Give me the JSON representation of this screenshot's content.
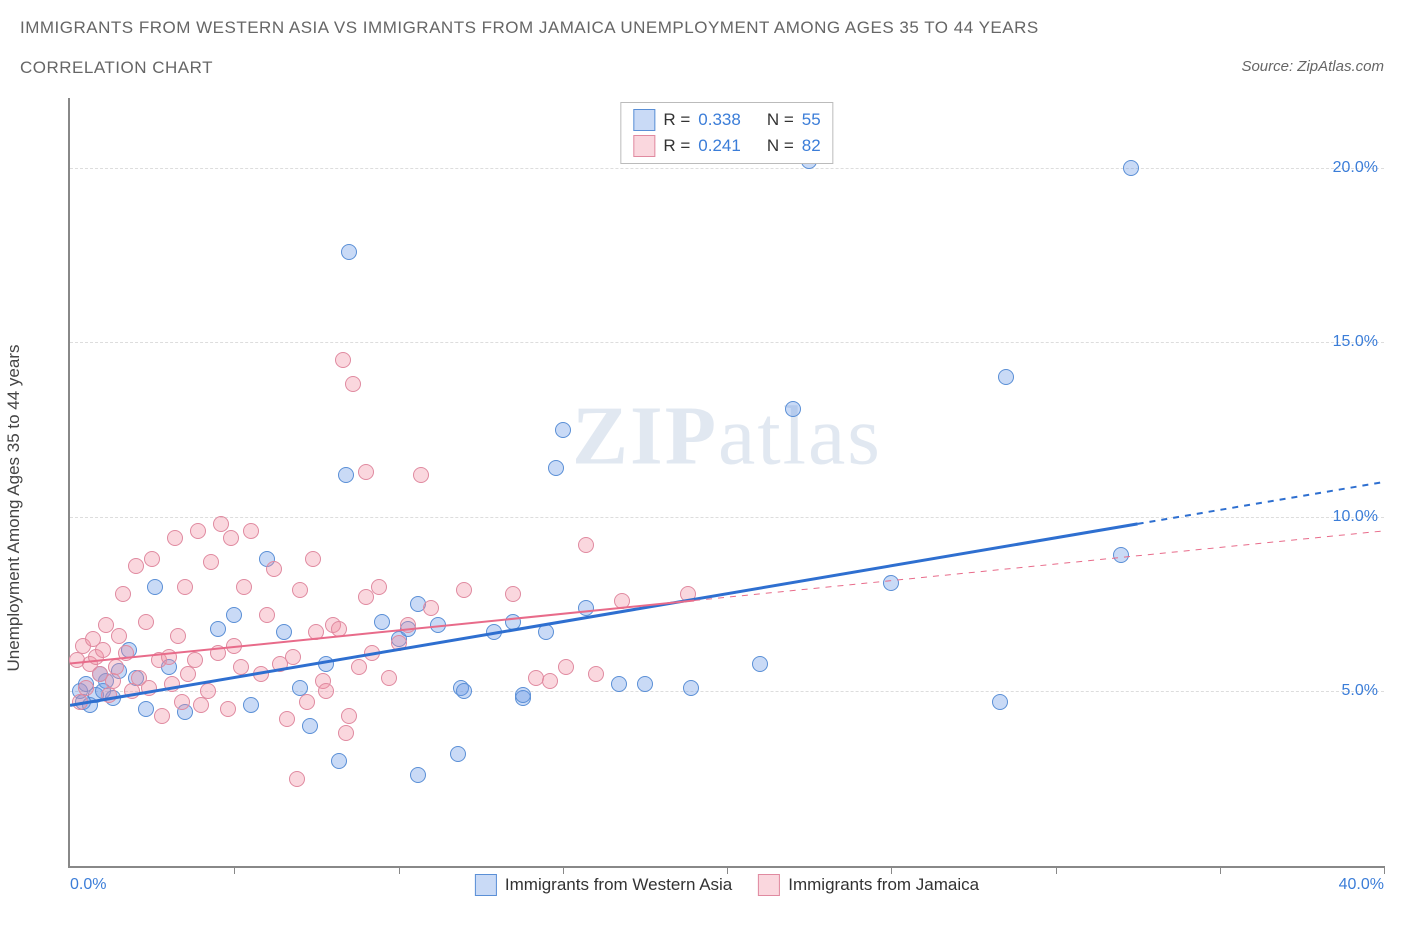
{
  "title_line1": "IMMIGRANTS FROM WESTERN ASIA VS IMMIGRANTS FROM JAMAICA UNEMPLOYMENT AMONG AGES 35 TO 44 YEARS",
  "title_line2": "CORRELATION CHART",
  "source_label": "Source: ZipAtlas.com",
  "watermark_zip": "ZIP",
  "watermark_atlas": "atlas",
  "chart": {
    "type": "scatter",
    "y_axis_label": "Unemployment Among Ages 35 to 44 years",
    "xlim": [
      0,
      40
    ],
    "ylim": [
      0,
      22
    ],
    "x_ticks": [
      {
        "pos": 0,
        "label": "0.0%"
      },
      {
        "pos": 40,
        "label": "40.0%"
      }
    ],
    "x_tick_marks": [
      5,
      10,
      15,
      20,
      25,
      30,
      35,
      40
    ],
    "y_ticks": [
      {
        "pos": 5,
        "label": "5.0%"
      },
      {
        "pos": 10,
        "label": "10.0%"
      },
      {
        "pos": 15,
        "label": "15.0%"
      },
      {
        "pos": 20,
        "label": "20.0%"
      }
    ],
    "grid_color": "#dddddd",
    "background_color": "#ffffff",
    "series": [
      {
        "name": "Immigrants from Western Asia",
        "legend_label": "Immigrants from Western Asia",
        "fill": "rgba(100,150,230,0.35)",
        "stroke": "#5a8fd6",
        "R": "0.338",
        "N": "55",
        "trend": {
          "x1": 0,
          "y1": 4.6,
          "x2": 40,
          "y2": 11.0,
          "solid_until_x": 32.5,
          "color": "#2e6fd0",
          "width": 3
        },
        "points": [
          [
            0.3,
            5.0
          ],
          [
            0.4,
            4.7
          ],
          [
            0.5,
            5.2
          ],
          [
            0.6,
            4.6
          ],
          [
            0.8,
            4.9
          ],
          [
            0.9,
            5.5
          ],
          [
            1.0,
            5.0
          ],
          [
            1.1,
            5.3
          ],
          [
            1.3,
            4.8
          ],
          [
            1.5,
            5.6
          ],
          [
            1.8,
            6.2
          ],
          [
            2.0,
            5.4
          ],
          [
            2.3,
            4.5
          ],
          [
            2.6,
            8.0
          ],
          [
            3.0,
            5.7
          ],
          [
            3.5,
            4.4
          ],
          [
            4.5,
            6.8
          ],
          [
            5.0,
            7.2
          ],
          [
            5.5,
            4.6
          ],
          [
            6.0,
            8.8
          ],
          [
            6.5,
            6.7
          ],
          [
            7.0,
            5.1
          ],
          [
            7.3,
            4.0
          ],
          [
            7.8,
            5.8
          ],
          [
            8.2,
            3.0
          ],
          [
            8.4,
            11.2
          ],
          [
            8.5,
            17.6
          ],
          [
            9.5,
            7.0
          ],
          [
            10.0,
            6.5
          ],
          [
            10.3,
            6.8
          ],
          [
            10.6,
            7.5
          ],
          [
            10.6,
            2.6
          ],
          [
            11.2,
            6.9
          ],
          [
            11.8,
            3.2
          ],
          [
            11.9,
            5.1
          ],
          [
            12.0,
            5.0
          ],
          [
            12.9,
            6.7
          ],
          [
            13.5,
            7.0
          ],
          [
            13.8,
            4.8
          ],
          [
            13.8,
            4.9
          ],
          [
            14.5,
            6.7
          ],
          [
            14.8,
            11.4
          ],
          [
            15.0,
            12.5
          ],
          [
            15.7,
            7.4
          ],
          [
            16.7,
            5.2
          ],
          [
            17.5,
            5.2
          ],
          [
            18.9,
            5.1
          ],
          [
            21.0,
            5.8
          ],
          [
            22.0,
            13.1
          ],
          [
            22.5,
            20.2
          ],
          [
            25.0,
            8.1
          ],
          [
            28.3,
            4.7
          ],
          [
            28.5,
            14.0
          ],
          [
            32.0,
            8.9
          ],
          [
            32.3,
            20.0
          ]
        ]
      },
      {
        "name": "Immigrants from Jamaica",
        "legend_label": "Immigrants from Jamaica",
        "fill": "rgba(240,140,160,0.35)",
        "stroke": "#e08aa0",
        "R": "0.241",
        "N": "82",
        "trend": {
          "x1": 0,
          "y1": 5.8,
          "x2": 40,
          "y2": 9.6,
          "solid_until_x": 19,
          "color": "#e86b8a",
          "width": 2
        },
        "points": [
          [
            0.2,
            5.9
          ],
          [
            0.3,
            4.7
          ],
          [
            0.4,
            6.3
          ],
          [
            0.5,
            5.1
          ],
          [
            0.6,
            5.8
          ],
          [
            0.7,
            6.5
          ],
          [
            0.8,
            6.0
          ],
          [
            0.9,
            5.5
          ],
          [
            1.0,
            6.2
          ],
          [
            1.1,
            6.9
          ],
          [
            1.2,
            4.9
          ],
          [
            1.3,
            5.3
          ],
          [
            1.4,
            5.7
          ],
          [
            1.5,
            6.6
          ],
          [
            1.6,
            7.8
          ],
          [
            1.7,
            6.1
          ],
          [
            1.9,
            5.0
          ],
          [
            2.0,
            8.6
          ],
          [
            2.1,
            5.4
          ],
          [
            2.3,
            7.0
          ],
          [
            2.4,
            5.1
          ],
          [
            2.5,
            8.8
          ],
          [
            2.7,
            5.9
          ],
          [
            2.8,
            4.3
          ],
          [
            3.0,
            6.0
          ],
          [
            3.1,
            5.2
          ],
          [
            3.2,
            9.4
          ],
          [
            3.3,
            6.6
          ],
          [
            3.4,
            4.7
          ],
          [
            3.5,
            8.0
          ],
          [
            3.6,
            5.5
          ],
          [
            3.8,
            5.9
          ],
          [
            3.9,
            9.6
          ],
          [
            4.0,
            4.6
          ],
          [
            4.2,
            5.0
          ],
          [
            4.3,
            8.7
          ],
          [
            4.5,
            6.1
          ],
          [
            4.6,
            9.8
          ],
          [
            4.8,
            4.5
          ],
          [
            4.9,
            9.4
          ],
          [
            5.0,
            6.3
          ],
          [
            5.2,
            5.7
          ],
          [
            5.3,
            8.0
          ],
          [
            5.5,
            9.6
          ],
          [
            5.8,
            5.5
          ],
          [
            6.0,
            7.2
          ],
          [
            6.2,
            8.5
          ],
          [
            6.4,
            5.8
          ],
          [
            6.6,
            4.2
          ],
          [
            6.8,
            6.0
          ],
          [
            6.9,
            2.5
          ],
          [
            7.0,
            7.9
          ],
          [
            7.2,
            4.7
          ],
          [
            7.4,
            8.8
          ],
          [
            7.5,
            6.7
          ],
          [
            7.7,
            5.3
          ],
          [
            7.8,
            5.0
          ],
          [
            8.0,
            6.9
          ],
          [
            8.2,
            6.8
          ],
          [
            8.3,
            14.5
          ],
          [
            8.4,
            3.8
          ],
          [
            8.5,
            4.3
          ],
          [
            8.6,
            13.8
          ],
          [
            8.8,
            5.7
          ],
          [
            9.0,
            7.7
          ],
          [
            9.0,
            11.3
          ],
          [
            9.2,
            6.1
          ],
          [
            9.4,
            8.0
          ],
          [
            9.7,
            5.4
          ],
          [
            10.0,
            6.4
          ],
          [
            10.3,
            6.9
          ],
          [
            10.7,
            11.2
          ],
          [
            11.0,
            7.4
          ],
          [
            12.0,
            7.9
          ],
          [
            13.5,
            7.8
          ],
          [
            14.2,
            5.4
          ],
          [
            14.6,
            5.3
          ],
          [
            15.1,
            5.7
          ],
          [
            15.7,
            9.2
          ],
          [
            16.0,
            5.5
          ],
          [
            16.8,
            7.6
          ],
          [
            18.8,
            7.8
          ]
        ]
      }
    ]
  },
  "stats_legend_labels": {
    "R": "R =",
    "N": "N ="
  }
}
